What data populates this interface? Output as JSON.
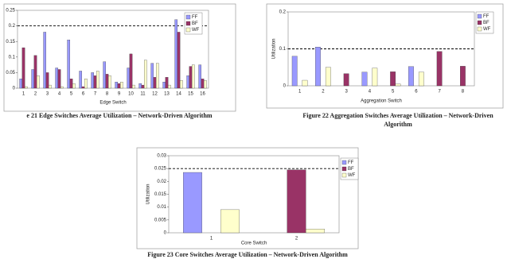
{
  "chart_data": [
    {
      "type": "bar",
      "caption": [
        "e 21 Edge Switches Average Utilization – Network-Driven Algorithm"
      ],
      "x_label": "Edge Switch",
      "categories": [
        "1",
        "2",
        "3",
        "4",
        "5",
        "6",
        "7",
        "8",
        "9",
        "10",
        "11",
        "12",
        "13",
        "14",
        "15",
        "16"
      ],
      "series": [
        {
          "name": "FF",
          "color": "#9999ff",
          "values": [
            0.03,
            0.06,
            0.18,
            0.065,
            0.155,
            0.055,
            0.05,
            0.085,
            0.02,
            0.065,
            0.015,
            0.08,
            0.02,
            0.22,
            0.04,
            0.075
          ]
        },
        {
          "name": "BF",
          "color": "#993366",
          "values": [
            0.13,
            0.105,
            0.05,
            0.06,
            0.03,
            0.005,
            0.04,
            0.045,
            0.015,
            0.11,
            0.01,
            0.035,
            0.035,
            0.18,
            0.07,
            0.03
          ]
        },
        {
          "name": "WF",
          "color": "#ffffcc",
          "values": [
            0.005,
            0.04,
            0.01,
            0.005,
            0.015,
            0.03,
            0.055,
            0.04,
            0.02,
            0.01,
            0.09,
            0.08,
            0.01,
            0.025,
            0.075,
            0.025
          ]
        }
      ],
      "ylim": [
        0,
        0.25
      ],
      "yticks": [
        0,
        0.05,
        0.1,
        0.15,
        0.2,
        0.25
      ],
      "reference_line": 0.2,
      "legend": "upper right"
    },
    {
      "type": "bar",
      "caption": [
        "Figure 22 Aggregation Switches Average Utilization – Network-Driven",
        "Algorithm"
      ],
      "x_label": "Aggregation Switch",
      "y_label": "Utilization",
      "categories": [
        "1",
        "2",
        "3",
        "4",
        "5",
        "6",
        "7",
        "8"
      ],
      "series": [
        {
          "name": "FF",
          "color": "#9999ff",
          "values": [
            0.08,
            0.105,
            0,
            0.037,
            0,
            0.052,
            0,
            0
          ]
        },
        {
          "name": "BF",
          "color": "#993366",
          "values": [
            0,
            0,
            0.033,
            0,
            0.038,
            0,
            0.093,
            0.053
          ]
        },
        {
          "name": "WF",
          "color": "#ffffcc",
          "values": [
            0.015,
            0.05,
            0,
            0.048,
            0.005,
            0.037,
            0,
            0
          ]
        }
      ],
      "ylim": [
        0,
        0.2
      ],
      "yticks": [
        0,
        0.1,
        0.2
      ],
      "reference_line": 0.1,
      "legend": "right"
    },
    {
      "type": "bar",
      "caption": [
        "Figure 23 Core Switches Average Utilization – Network-Driven Algorithm"
      ],
      "x_label": "Core Switch",
      "y_label": "Utilization",
      "categories": [
        "1",
        "2"
      ],
      "series": [
        {
          "name": "FF",
          "color": "#9999ff",
          "values": [
            0.0235,
            0
          ]
        },
        {
          "name": "BF",
          "color": "#993366",
          "values": [
            0,
            0.0245
          ]
        },
        {
          "name": "WF",
          "color": "#ffffcc",
          "values": [
            0.009,
            0.0015
          ]
        }
      ],
      "ylim": [
        0,
        0.03
      ],
      "yticks": [
        0,
        0.005,
        0.01,
        0.015,
        0.02,
        0.025,
        0.03
      ],
      "reference_line": 0.025,
      "legend": "right"
    }
  ]
}
